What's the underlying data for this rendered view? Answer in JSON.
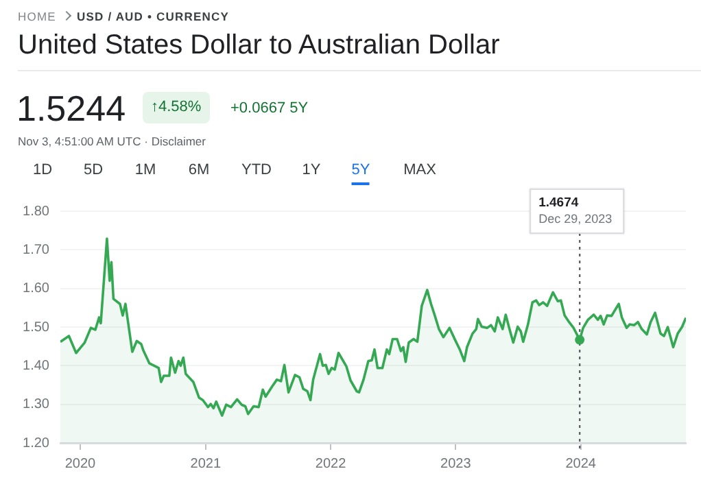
{
  "chart_data": {
    "type": "area",
    "title": "United States Dollar to Australian Dollar",
    "x": [
      "2019-11-04",
      "2019-11-29",
      "2019-12-07",
      "2019-12-20",
      "2020-01-14",
      "2020-02-01",
      "2020-02-14",
      "2020-02-25",
      "2020-03-01",
      "2020-03-19",
      "2020-03-27",
      "2020-04-01",
      "2020-04-07",
      "2020-04-26",
      "2020-05-04",
      "2020-05-12",
      "2020-06-01",
      "2020-06-14",
      "2020-06-27",
      "2020-07-03",
      "2020-07-21",
      "2020-08-17",
      "2020-08-24",
      "2020-09-01",
      "2020-09-17",
      "2020-09-22",
      "2020-10-04",
      "2020-10-14",
      "2020-10-20",
      "2020-10-28",
      "2020-11-04",
      "2020-11-26",
      "2020-12-13",
      "2020-12-24",
      "2021-01-08",
      "2021-01-16",
      "2021-01-24",
      "2021-02-01",
      "2021-02-18",
      "2021-03-02",
      "2021-03-16",
      "2021-04-03",
      "2021-04-16",
      "2021-04-27",
      "2021-05-05",
      "2021-05-21",
      "2021-06-05",
      "2021-06-17",
      "2021-06-25",
      "2021-07-14",
      "2021-07-28",
      "2021-08-09",
      "2021-08-19",
      "2021-08-31",
      "2021-09-19",
      "2021-10-02",
      "2021-10-13",
      "2021-10-25",
      "2021-11-03",
      "2021-11-11",
      "2021-12-01",
      "2021-12-09",
      "2021-12-18",
      "2021-12-26",
      "2022-01-04",
      "2022-01-13",
      "2022-01-24",
      "2022-02-16",
      "2022-02-28",
      "2022-03-18",
      "2022-03-25",
      "2022-04-07",
      "2022-04-21",
      "2022-05-01",
      "2022-05-09",
      "2022-05-18",
      "2022-06-01",
      "2022-06-14",
      "2022-06-21",
      "2022-07-01",
      "2022-07-14",
      "2022-07-25",
      "2022-08-01",
      "2022-08-08",
      "2022-08-17",
      "2022-08-31",
      "2022-09-11",
      "2022-09-24",
      "2022-10-10",
      "2022-10-21",
      "2022-11-01",
      "2022-11-13",
      "2022-11-26",
      "2022-12-14",
      "2022-12-28",
      "2023-01-13",
      "2023-01-26",
      "2023-02-03",
      "2023-02-19",
      "2023-03-02",
      "2023-03-07",
      "2023-03-18",
      "2023-04-03",
      "2023-04-14",
      "2023-04-25",
      "2023-05-04",
      "2023-05-18",
      "2023-05-27",
      "2023-06-07",
      "2023-06-18",
      "2023-07-01",
      "2023-07-10",
      "2023-07-17",
      "2023-07-31",
      "2023-08-13",
      "2023-08-24",
      "2023-09-02",
      "2023-09-13",
      "2023-09-25",
      "2023-10-12",
      "2023-10-26",
      "2023-11-04",
      "2023-11-15",
      "2023-11-28",
      "2023-12-11",
      "2023-12-29",
      "2024-01-08",
      "2024-01-22",
      "2024-02-08",
      "2024-02-20",
      "2024-02-28",
      "2024-03-08",
      "2024-03-18",
      "2024-03-31",
      "2024-04-08",
      "2024-04-21",
      "2024-04-30",
      "2024-05-14",
      "2024-05-23",
      "2024-06-05",
      "2024-06-16",
      "2024-06-27",
      "2024-07-12",
      "2024-07-23",
      "2024-08-05",
      "2024-08-21",
      "2024-08-31",
      "2024-09-11",
      "2024-09-27",
      "2024-10-10",
      "2024-10-23",
      "2024-11-03"
    ],
    "series": [
      {
        "color": "#34a853",
        "values": [
          1.462,
          1.477,
          1.46,
          1.433,
          1.46,
          1.498,
          1.493,
          1.525,
          1.51,
          1.729,
          1.62,
          1.668,
          1.573,
          1.56,
          1.53,
          1.56,
          1.436,
          1.464,
          1.456,
          1.44,
          1.406,
          1.394,
          1.358,
          1.374,
          1.374,
          1.421,
          1.382,
          1.412,
          1.4,
          1.421,
          1.379,
          1.358,
          1.317,
          1.311,
          1.293,
          1.301,
          1.29,
          1.307,
          1.271,
          1.299,
          1.293,
          1.313,
          1.299,
          1.295,
          1.275,
          1.295,
          1.293,
          1.338,
          1.32,
          1.346,
          1.364,
          1.36,
          1.402,
          1.331,
          1.376,
          1.37,
          1.34,
          1.334,
          1.311,
          1.364,
          1.43,
          1.4,
          1.402,
          1.379,
          1.394,
          1.39,
          1.433,
          1.398,
          1.362,
          1.334,
          1.331,
          1.364,
          1.412,
          1.414,
          1.442,
          1.394,
          1.394,
          1.442,
          1.43,
          1.469,
          1.469,
          1.438,
          1.448,
          1.41,
          1.46,
          1.469,
          1.462,
          1.555,
          1.596,
          1.56,
          1.53,
          1.495,
          1.474,
          1.498,
          1.471,
          1.442,
          1.412,
          1.448,
          1.483,
          1.495,
          1.521,
          1.501,
          1.498,
          1.505,
          1.489,
          1.525,
          1.495,
          1.532,
          1.495,
          1.46,
          1.501,
          1.489,
          1.462,
          1.507,
          1.564,
          1.569,
          1.557,
          1.564,
          1.555,
          1.59,
          1.567,
          1.569,
          1.53,
          1.513,
          1.498,
          1.467,
          1.498,
          1.519,
          1.532,
          1.519,
          1.529,
          1.507,
          1.53,
          1.529,
          1.541,
          1.56,
          1.525,
          1.498,
          1.507,
          1.505,
          1.513,
          1.495,
          1.481,
          1.513,
          1.537,
          1.483,
          1.477,
          1.5,
          1.448,
          1.483,
          1.501,
          1.524
        ]
      }
    ],
    "xlim": [
      "2019-11-04",
      "2024-11-03"
    ],
    "xticks": [
      {
        "value": "2020-01-01",
        "label": "2020"
      },
      {
        "value": "2021-01-01",
        "label": "2021"
      },
      {
        "value": "2022-01-01",
        "label": "2022"
      },
      {
        "value": "2023-01-01",
        "label": "2023"
      },
      {
        "value": "2024-01-01",
        "label": "2024"
      }
    ],
    "ylim": [
      1.2,
      1.8
    ],
    "yticks": [
      {
        "value": 1.2,
        "label": "1.20"
      },
      {
        "value": 1.3,
        "label": "1.30"
      },
      {
        "value": 1.4,
        "label": "1.40"
      },
      {
        "value": 1.5,
        "label": "1.50"
      },
      {
        "value": 1.6,
        "label": "1.60"
      },
      {
        "value": 1.7,
        "label": "1.70"
      },
      {
        "value": 1.8,
        "label": "1.80"
      }
    ],
    "grid": "y",
    "legend": false,
    "marker": "none",
    "line_style": "solid",
    "ref_lines": [
      {
        "axis": "x",
        "value": "2023-12-29",
        "label": "Dec 29, 2023",
        "line_style": "dotted",
        "color": "#5f6368"
      }
    ],
    "annotations": [
      "HOME",
      "USD / AUD • CURRENCY",
      "1.5244",
      "↑4.58%",
      "+0.0667 5Y",
      "Nov 3, 4:51:00 AM UTC · Disclaimer",
      "1D",
      "5D",
      "1M",
      "6M",
      "YTD",
      "1Y",
      "5Y",
      "MAX",
      "1.4674"
    ]
  }
}
